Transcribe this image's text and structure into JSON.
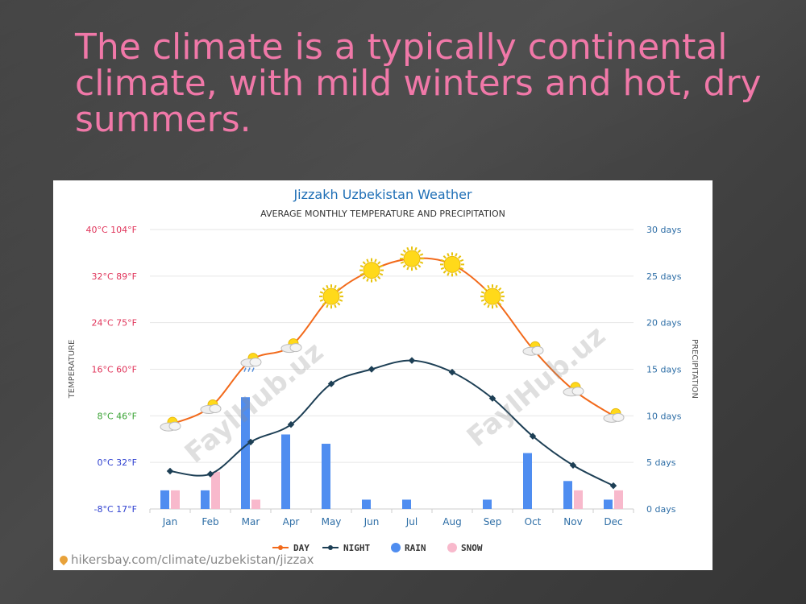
{
  "slide": {
    "title": "The climate is a typically continental climate, with mild winters and hot, dry summers.",
    "watermark": "FaylHub.uz"
  },
  "source": "hikersbay.com/climate/uzbekistan/jizzax",
  "colors": {
    "day": "#f26a1b",
    "night": "#1d3f55",
    "rain": "#4f8df0",
    "snow": "#f8b9cc",
    "title": "#1f6fb6",
    "left_axis_warm": "#e0345a",
    "left_axis_mild": "#3aa335",
    "left_axis_cold": "#2d3fd0",
    "right_axis": "#2e6ea6"
  },
  "chart_data": {
    "type": "line",
    "title": "Jizzakh Uzbekistan Weather",
    "subtitle": "AVERAGE MONTHLY TEMPERATURE AND PRECIPITATION",
    "ylabel": "TEMPERATURE",
    "y2label": "PRECIPITATION",
    "categories": [
      "Jan",
      "Feb",
      "Mar",
      "Apr",
      "May",
      "Jun",
      "Jul",
      "Aug",
      "Sep",
      "Oct",
      "Nov",
      "Dec"
    ],
    "ylim": [
      -8,
      40
    ],
    "y2lim": [
      0,
      30
    ],
    "left_ticks": [
      {
        "value": 40,
        "label": "40°C 104°F"
      },
      {
        "value": 32,
        "label": "32°C 89°F"
      },
      {
        "value": 24,
        "label": "24°C 75°F"
      },
      {
        "value": 16,
        "label": "16°C 60°F"
      },
      {
        "value": 8,
        "label": "8°C 46°F"
      },
      {
        "value": 0,
        "label": "0°C 32°F"
      },
      {
        "value": -8,
        "label": "-8°C 17°F"
      }
    ],
    "right_ticks": [
      {
        "value": 30,
        "label": "30 days"
      },
      {
        "value": 25,
        "label": "25 days"
      },
      {
        "value": 20,
        "label": "20 days"
      },
      {
        "value": 15,
        "label": "15 days"
      },
      {
        "value": 10,
        "label": "10 days"
      },
      {
        "value": 5,
        "label": "5 days"
      },
      {
        "value": 0,
        "label": "0 days"
      }
    ],
    "series": [
      {
        "name": "DAY",
        "axis": "left",
        "type": "line",
        "values": [
          6.5,
          9.5,
          17.5,
          20,
          28.5,
          33,
          35,
          34,
          28.5,
          19.5,
          12.5,
          8
        ]
      },
      {
        "name": "NIGHT",
        "axis": "left",
        "type": "line",
        "values": [
          -1.5,
          -2,
          3.5,
          6.5,
          13.5,
          16,
          17.5,
          15.5,
          11,
          4.5,
          -0.5,
          -4
        ]
      },
      {
        "name": "RAIN",
        "axis": "right",
        "type": "bar",
        "values": [
          2,
          2,
          12,
          8,
          7,
          1,
          1,
          0,
          1,
          6,
          3,
          1
        ]
      },
      {
        "name": "SNOW",
        "axis": "right",
        "type": "bar",
        "values": [
          2,
          4,
          1,
          0,
          0,
          0,
          0,
          0,
          0,
          0,
          2,
          2
        ]
      }
    ],
    "weather_icons": [
      "partly-cloudy",
      "partly-cloudy",
      "rain-cloud",
      "partly-cloudy",
      "sun",
      "sun",
      "sun",
      "sun",
      "sun",
      "partly-cloudy",
      "partly-cloudy",
      "partly-cloudy"
    ],
    "legend_position": "bottom",
    "grid": true
  }
}
